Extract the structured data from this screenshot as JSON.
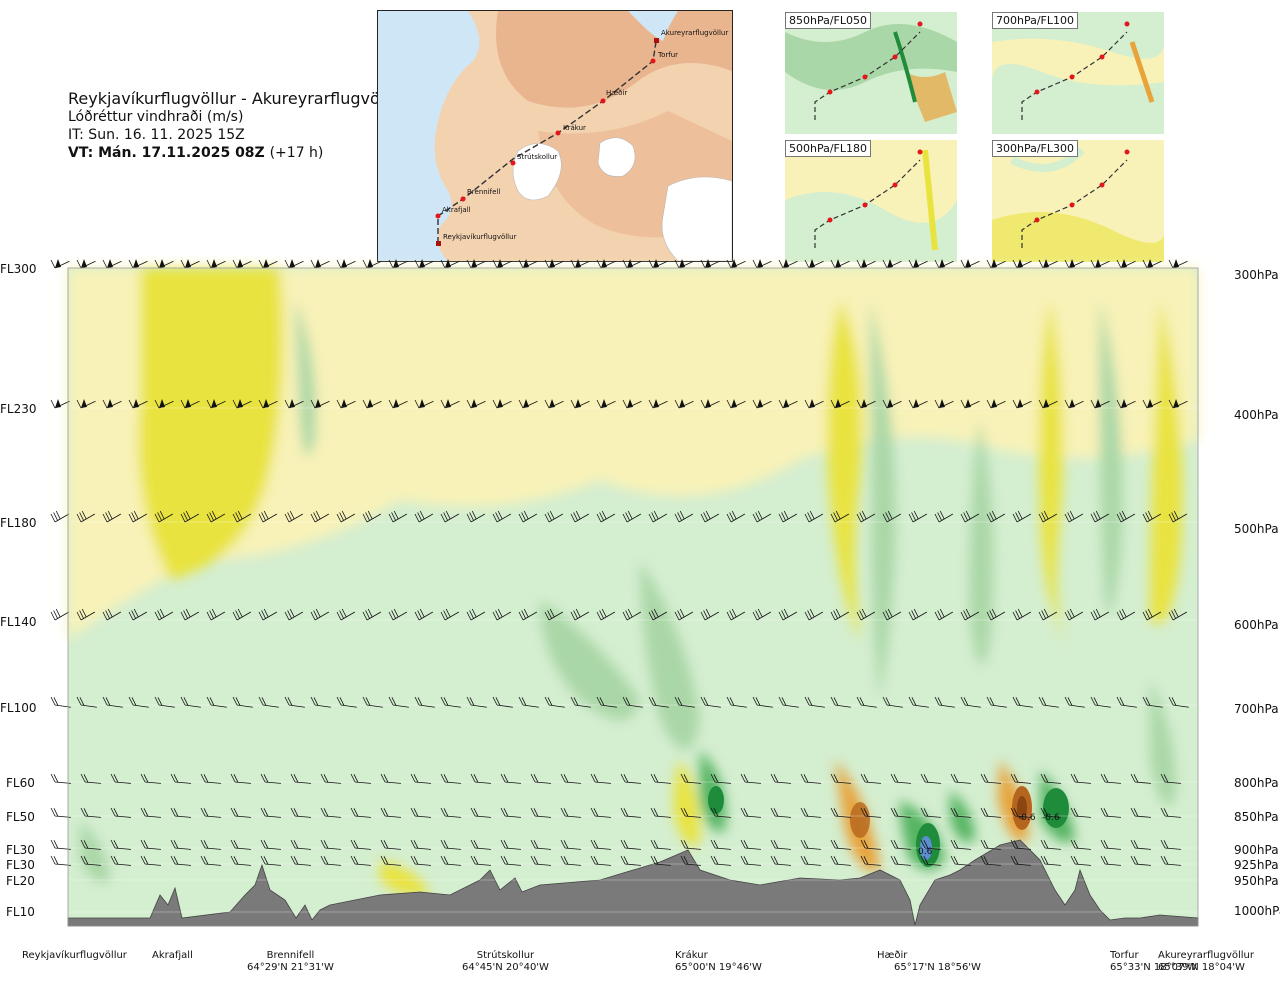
{
  "title": {
    "route": "Reykjavíkurflugvöllur - Akureyrarflugvöllur",
    "variable": "Lóðréttur vindhraði (m/s)",
    "issue_time": "IT: Sun. 16. 11. 2025 15Z",
    "valid_time": "VT: Mán. 17.11.2025 08Z",
    "lead_time": "(+17 h)"
  },
  "route_map": {
    "waypoints": [
      "Akureyrarflugvöllur",
      "Torfur",
      "Hæðir",
      "Krákur",
      "Strútskollur",
      "Brennifell",
      "Akrafjall",
      "Reykjavíkurflugvöllur"
    ],
    "colors": {
      "land": "#f3d2b0",
      "highland": "#e9b58e",
      "sea": "#cfe6f7",
      "ice": "#ffffff",
      "route": "#333333",
      "point": "#e3161c"
    }
  },
  "mini_maps": [
    {
      "label": "850hPa/FL050"
    },
    {
      "label": "700hPa/FL100"
    },
    {
      "label": "500hPa/FL180"
    },
    {
      "label": "300hPa/FL300"
    }
  ],
  "chart_data": {
    "type": "heatmap",
    "title": "Lóðréttur vindhraði (m/s)",
    "x_locations": [
      {
        "name": "Reykjavíkurflugvöllur",
        "coord": ""
      },
      {
        "name": "Akrafjall",
        "coord": ""
      },
      {
        "name": "Brennifell",
        "coord": "64°29'N 21°31'W"
      },
      {
        "name": "Strútskollur",
        "coord": "64°45'N 20°40'W"
      },
      {
        "name": "Krákur",
        "coord": "65°00'N 19°46'W"
      },
      {
        "name": "Hæðir",
        "coord": "65°17'N 18°56'W"
      },
      {
        "name": "Torfur",
        "coord": "65°33'N 18°07'W"
      },
      {
        "name": "Akureyrarflugvöllur",
        "coord": "65°39'N 18°04'W"
      }
    ],
    "flight_levels": [
      "FL300",
      "FL230",
      "FL180",
      "FL140",
      "FL100",
      "FL60",
      "FL50",
      "FL30",
      "FL30",
      "FL20",
      "FL10"
    ],
    "pressure_levels": [
      "300hPa",
      "400hPa",
      "500hPa",
      "600hPa",
      "700hPa",
      "800hPa",
      "850hPa",
      "900hPa",
      "925hPa",
      "950hPa",
      "1000hPa"
    ],
    "pressure_values": [
      300,
      400,
      500,
      600,
      700,
      800,
      850,
      900,
      925,
      950,
      1000
    ],
    "value_labels": [
      "-0.6",
      "-0.6",
      "0.6"
    ],
    "colors": {
      "strong_down": "#8b4513",
      "down": "#e8a33a",
      "weak_down": "#e9e340",
      "slight_down": "#f8f2b8",
      "neutral": "#ffffff",
      "slight_up": "#d4eed0",
      "weak_up": "#aad7a7",
      "up": "#55b462",
      "strong_up": "#1e8c3a",
      "extreme": "#5b8fcf",
      "terrain": "#7a7a7a"
    }
  }
}
